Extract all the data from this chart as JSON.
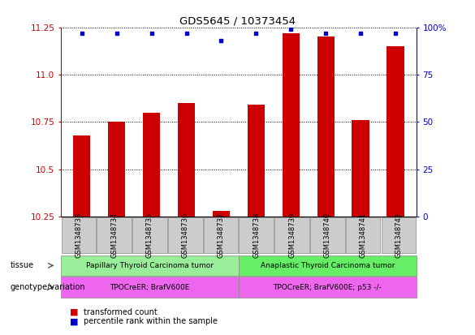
{
  "title": "GDS5645 / 10373454",
  "samples": [
    "GSM1348733",
    "GSM1348734",
    "GSM1348735",
    "GSM1348736",
    "GSM1348737",
    "GSM1348738",
    "GSM1348739",
    "GSM1348740",
    "GSM1348741",
    "GSM1348742"
  ],
  "transformed_count": [
    10.68,
    10.75,
    10.8,
    10.85,
    10.28,
    10.84,
    11.22,
    11.2,
    10.76,
    11.15
  ],
  "percentile_rank": [
    97,
    97,
    97,
    97,
    93,
    97,
    99,
    97,
    97,
    97
  ],
  "ylim_left": [
    10.25,
    11.25
  ],
  "ylim_right": [
    0,
    100
  ],
  "yticks_left": [
    10.25,
    10.5,
    10.75,
    11.0,
    11.25
  ],
  "yticks_right": [
    0,
    25,
    50,
    75,
    100
  ],
  "bar_color": "#cc0000",
  "dot_color": "#0000cc",
  "bar_width": 0.5,
  "tissue_groups": [
    {
      "label": "Papillary Thyroid Carcinoma tumor",
      "start": 0,
      "end": 4,
      "color": "#99ee99"
    },
    {
      "label": "Anaplastic Thyroid Carcinoma tumor",
      "start": 5,
      "end": 9,
      "color": "#66ee66"
    }
  ],
  "genotype_groups": [
    {
      "label": "TPOCreER; BrafV600E",
      "start": 0,
      "end": 4,
      "color": "#ee66ee"
    },
    {
      "label": "TPOCreER; BrafV600E; p53 -/-",
      "start": 5,
      "end": 9,
      "color": "#ee66ee"
    }
  ],
  "legend_dot_color": "#0000cc",
  "legend_bar_color": "#cc0000",
  "xlabel_tissue": "tissue",
  "xlabel_genotype": "genotype/variation",
  "legend1": "transformed count",
  "legend2": "percentile rank within the sample",
  "background_color": "#ffffff",
  "tick_label_color_left": "#cc0000",
  "tick_label_color_right": "#0000cc",
  "sample_box_color": "#cccccc"
}
